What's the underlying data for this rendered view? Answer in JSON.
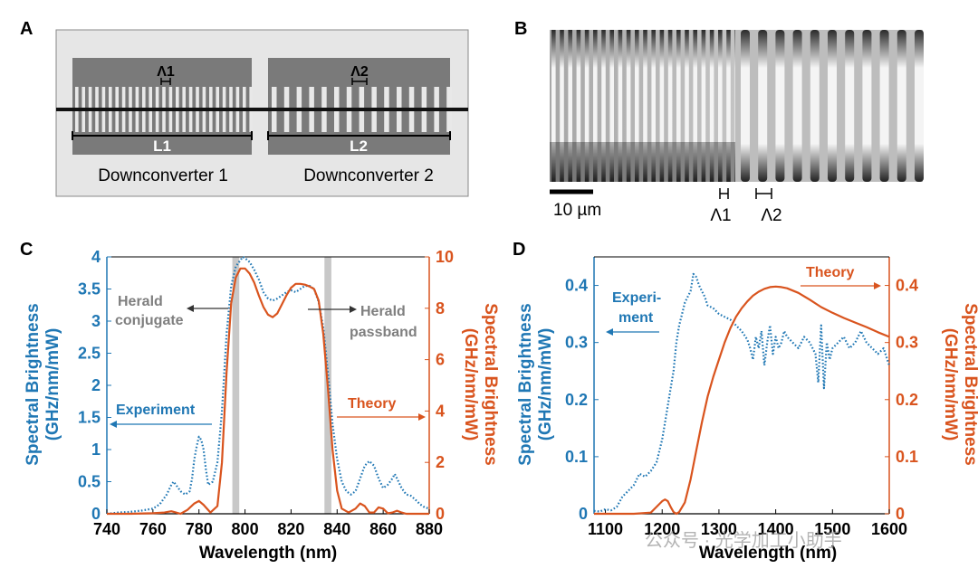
{
  "panels": {
    "A": {
      "label": "A",
      "period1": "Λ1",
      "period2": "Λ2",
      "length1": "L1",
      "length2": "L2",
      "caption1": "Downconverter 1",
      "caption2": "Downconverter 2"
    },
    "B": {
      "label": "B",
      "scalebar": "10 µm",
      "period1": "Λ1",
      "period2": "Λ2"
    },
    "C": {
      "label": "C",
      "annotations": {
        "herald_conjugate_1": "Herald",
        "herald_conjugate_2": "conjugate",
        "herald_passband_1": "Herald",
        "herald_passband_2": "passband",
        "experiment": "Experiment",
        "theory": "Theory"
      }
    },
    "D": {
      "label": "D",
      "annotations": {
        "experiment_1": "Experi-",
        "experiment_2": "ment",
        "theory": "Theory"
      }
    }
  },
  "watermark": "公众号 · 光学加工小助手",
  "colors": {
    "experiment": "#1f77b4",
    "theory": "#d9541e",
    "band": "#c8c8c8",
    "annotation": "#7f7f7f"
  },
  "chart_data": [
    {
      "id": "C",
      "type": "line",
      "xlabel": "Wavelength (nm)",
      "ylabel_left_1": "Spectral Brightness",
      "ylabel_left_2": "(GHz/nm/mW)",
      "ylabel_right_1": "Spectral Brightness",
      "ylabel_right_2": "(GHz/nm/mW)",
      "xlim": [
        740,
        880
      ],
      "ylim_left": [
        0,
        4
      ],
      "ylim_right": [
        0,
        10
      ],
      "xticks": [
        740,
        760,
        780,
        800,
        820,
        840,
        860,
        880
      ],
      "yticks_left": [
        "0",
        "0.5",
        "1",
        "1.5",
        "2",
        "2.5",
        "3",
        "3.5",
        "4"
      ],
      "yticks_right": [
        "0",
        "2",
        "4",
        "6",
        "8",
        "10"
      ],
      "bands": [
        [
          794.5,
          797.5
        ],
        [
          834.5,
          837.5
        ]
      ],
      "series": [
        {
          "name": "Experiment",
          "axis": "left",
          "style": "dotted",
          "x": [
            740,
            745,
            750,
            755,
            760,
            763,
            766,
            768,
            769,
            770,
            772,
            774,
            776,
            777,
            778,
            779,
            780,
            781,
            782,
            783,
            784,
            786,
            788,
            790,
            792,
            794,
            796,
            798,
            799,
            800,
            802,
            804,
            806,
            808,
            810,
            812,
            814,
            816,
            818,
            820,
            822,
            824,
            826,
            828,
            830,
            832,
            834,
            836,
            838,
            840,
            842,
            844,
            846,
            848,
            850,
            852,
            854,
            856,
            858,
            860,
            862,
            864,
            865,
            866,
            868,
            870,
            872,
            874,
            876,
            878,
            880
          ],
          "y": [
            0,
            0.02,
            0.03,
            0.05,
            0.08,
            0.15,
            0.3,
            0.45,
            0.5,
            0.45,
            0.35,
            0.3,
            0.35,
            0.55,
            0.85,
            1.05,
            1.2,
            1.15,
            1.0,
            0.7,
            0.45,
            0.5,
            0.8,
            1.6,
            2.8,
            3.55,
            3.85,
            3.95,
            4.0,
            3.98,
            3.92,
            3.8,
            3.65,
            3.45,
            3.35,
            3.32,
            3.35,
            3.4,
            3.45,
            3.48,
            3.45,
            3.5,
            3.55,
            3.55,
            3.5,
            3.3,
            2.9,
            2.2,
            1.4,
            0.85,
            0.5,
            0.35,
            0.3,
            0.35,
            0.55,
            0.75,
            0.82,
            0.75,
            0.55,
            0.4,
            0.45,
            0.55,
            0.62,
            0.55,
            0.4,
            0.3,
            0.28,
            0.22,
            0.15,
            0.1,
            0.08
          ]
        },
        {
          "name": "Theory",
          "axis": "right",
          "style": "solid",
          "x": [
            740,
            750,
            760,
            765,
            768,
            770,
            772,
            775,
            778,
            780,
            782,
            785,
            788,
            790,
            792,
            794,
            796,
            798,
            800,
            802,
            804,
            806,
            808,
            810,
            812,
            814,
            816,
            818,
            820,
            822,
            824,
            826,
            828,
            830,
            832,
            834,
            836,
            838,
            840,
            842,
            845,
            848,
            850,
            852,
            854,
            856,
            858,
            860,
            862,
            864,
            866,
            868,
            870,
            875,
            880
          ],
          "y": [
            0,
            0,
            0.02,
            0.05,
            0.1,
            0.05,
            0,
            0.15,
            0.4,
            0.5,
            0.35,
            0.05,
            0.3,
            2.0,
            5.5,
            8.2,
            9.2,
            9.55,
            9.55,
            9.35,
            9.0,
            8.5,
            8.05,
            7.75,
            7.65,
            7.8,
            8.15,
            8.5,
            8.8,
            8.95,
            8.95,
            8.92,
            8.85,
            8.75,
            8.3,
            7.0,
            4.9,
            2.5,
            0.9,
            0.2,
            0.05,
            0.2,
            0.4,
            0.3,
            0.05,
            0.05,
            0.25,
            0.2,
            0.02,
            0.05,
            0.12,
            0.05,
            0,
            0,
            0
          ]
        }
      ]
    },
    {
      "id": "D",
      "type": "line",
      "xlabel": "Wavelength (nm)",
      "ylabel_left_1": "Spectral Brightness",
      "ylabel_left_2": "(GHz/nm/mW)",
      "ylabel_right_1": "Spectral Brightness",
      "ylabel_right_2": "(GHz/nm/mW)",
      "xlim": [
        1080,
        1600
      ],
      "ylim_left": [
        0,
        0.45
      ],
      "ylim_right": [
        0,
        0.45
      ],
      "xticks": [
        1100,
        1200,
        1300,
        1400,
        1500,
        1600
      ],
      "yticks_left": [
        "0",
        "0.1",
        "0.2",
        "0.3",
        "0.4"
      ],
      "yticks_right": [
        "0",
        "0.1",
        "0.2",
        "0.3",
        "0.4"
      ],
      "series": [
        {
          "name": "Experiment",
          "axis": "left",
          "style": "dotted",
          "x": [
            1080,
            1090,
            1100,
            1110,
            1120,
            1130,
            1140,
            1150,
            1160,
            1170,
            1180,
            1190,
            1195,
            1200,
            1205,
            1210,
            1215,
            1220,
            1225,
            1230,
            1235,
            1240,
            1245,
            1250,
            1255,
            1260,
            1265,
            1270,
            1275,
            1280,
            1290,
            1300,
            1310,
            1320,
            1330,
            1340,
            1350,
            1355,
            1360,
            1365,
            1370,
            1375,
            1380,
            1385,
            1390,
            1395,
            1400,
            1405,
            1410,
            1415,
            1420,
            1430,
            1440,
            1450,
            1460,
            1470,
            1475,
            1480,
            1485,
            1490,
            1495,
            1500,
            1510,
            1520,
            1530,
            1540,
            1550,
            1560,
            1570,
            1580,
            1590,
            1600
          ],
          "y": [
            0.005,
            0.004,
            0.008,
            0.006,
            0.012,
            0.03,
            0.04,
            0.05,
            0.07,
            0.065,
            0.075,
            0.09,
            0.11,
            0.13,
            0.16,
            0.19,
            0.22,
            0.25,
            0.3,
            0.33,
            0.35,
            0.37,
            0.38,
            0.39,
            0.42,
            0.415,
            0.4,
            0.39,
            0.38,
            0.365,
            0.36,
            0.35,
            0.345,
            0.34,
            0.33,
            0.32,
            0.305,
            0.29,
            0.27,
            0.31,
            0.29,
            0.32,
            0.26,
            0.3,
            0.33,
            0.28,
            0.31,
            0.29,
            0.3,
            0.32,
            0.31,
            0.3,
            0.29,
            0.31,
            0.3,
            0.28,
            0.23,
            0.33,
            0.22,
            0.3,
            0.27,
            0.29,
            0.3,
            0.31,
            0.29,
            0.3,
            0.32,
            0.3,
            0.29,
            0.28,
            0.29,
            0.26
          ]
        },
        {
          "name": "Theory",
          "axis": "right",
          "style": "solid",
          "x": [
            1080,
            1100,
            1150,
            1180,
            1190,
            1200,
            1205,
            1210,
            1215,
            1220,
            1225,
            1230,
            1240,
            1250,
            1260,
            1270,
            1280,
            1290,
            1300,
            1310,
            1320,
            1330,
            1340,
            1350,
            1360,
            1370,
            1380,
            1390,
            1400,
            1410,
            1420,
            1440,
            1460,
            1480,
            1500,
            1520,
            1540,
            1560,
            1580,
            1600
          ],
          "y": [
            0,
            0,
            0,
            0.002,
            0.012,
            0.022,
            0.025,
            0.022,
            0.012,
            0.003,
            0.0,
            0.003,
            0.02,
            0.06,
            0.11,
            0.16,
            0.205,
            0.24,
            0.27,
            0.3,
            0.325,
            0.345,
            0.36,
            0.372,
            0.382,
            0.389,
            0.394,
            0.397,
            0.398,
            0.397,
            0.395,
            0.387,
            0.375,
            0.362,
            0.352,
            0.343,
            0.335,
            0.327,
            0.318,
            0.31
          ]
        }
      ]
    }
  ]
}
